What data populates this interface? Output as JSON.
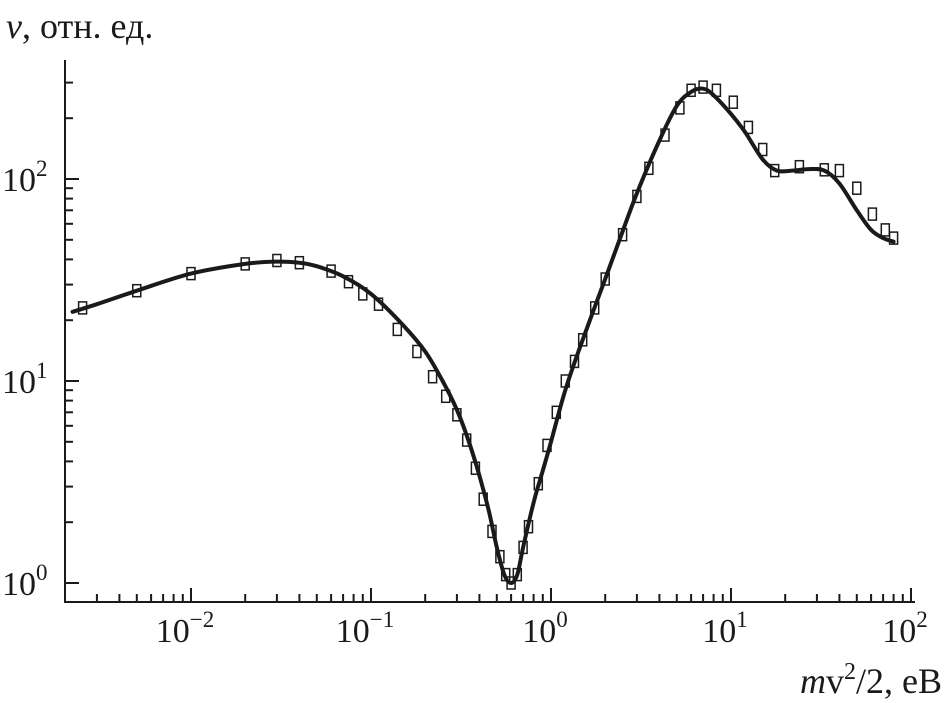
{
  "chart_data": {
    "type": "line",
    "title": "",
    "ylabel": {
      "italic": "v",
      "rest": ", отн. ед."
    },
    "xlabel": {
      "italic": "m",
      "rest": "v",
      "sup": "2",
      "tail": "/2, eB"
    },
    "xscale": "log",
    "yscale": "log",
    "xlim": [
      0.002,
      120
    ],
    "ylim": [
      0.93,
      320
    ],
    "grid": false,
    "x_ticks": [
      {
        "value": 0.01,
        "base": "10",
        "exp": "−2"
      },
      {
        "value": 0.1,
        "base": "10",
        "exp": "−1"
      },
      {
        "value": 1,
        "base": "10",
        "exp": "0"
      },
      {
        "value": 10,
        "base": "10",
        "exp": "1"
      },
      {
        "value": 100,
        "base": "10",
        "exp": "2"
      }
    ],
    "y_ticks": [
      {
        "value": 1,
        "base": "10",
        "exp": "0"
      },
      {
        "value": 10,
        "base": "10",
        "exp": "1"
      },
      {
        "value": 100,
        "base": "10",
        "exp": "2"
      }
    ],
    "series": [
      {
        "style": "line",
        "color": "#1a1a1a",
        "x": [
          0.0022,
          0.003,
          0.005,
          0.01,
          0.02,
          0.03,
          0.04,
          0.05,
          0.07,
          0.1,
          0.15,
          0.2,
          0.25,
          0.3,
          0.35,
          0.4,
          0.45,
          0.5,
          0.55,
          0.6,
          0.65,
          0.7,
          0.8,
          0.9,
          1.0,
          1.2,
          1.5,
          2.0,
          2.5,
          3.0,
          4.0,
          5.0,
          6.0,
          7.0,
          8.0,
          10,
          12,
          15,
          18,
          22,
          27,
          33,
          40,
          50,
          60,
          70,
          80
        ],
        "y": [
          22,
          24,
          28,
          34,
          38,
          39,
          38.5,
          37,
          33,
          27,
          19,
          14,
          10,
          7.2,
          5,
          3.4,
          2.3,
          1.5,
          1.1,
          1.0,
          1.1,
          1.5,
          2.5,
          3.6,
          5.0,
          9,
          16,
          32,
          55,
          85,
          155,
          230,
          270,
          280,
          260,
          210,
          170,
          125,
          110,
          110,
          112,
          110,
          95,
          70,
          56,
          51,
          49
        ]
      },
      {
        "style": "markers",
        "marker": "square",
        "color": "#1a1a1a",
        "x": [
          0.0025,
          0.005,
          0.01,
          0.02,
          0.03,
          0.04,
          0.06,
          0.075,
          0.09,
          0.11,
          0.14,
          0.18,
          0.22,
          0.26,
          0.3,
          0.34,
          0.38,
          0.42,
          0.47,
          0.52,
          0.56,
          0.6,
          0.65,
          0.7,
          0.75,
          0.85,
          0.95,
          1.07,
          1.2,
          1.35,
          1.5,
          1.75,
          2.0,
          2.5,
          3.0,
          3.5,
          4.3,
          5.2,
          6.0,
          7.0,
          8.3,
          10.3,
          12.5,
          15.0,
          17.5,
          24,
          33,
          40,
          50,
          61,
          72,
          80
        ],
        "y": [
          23,
          28,
          34,
          38,
          39.5,
          38.5,
          35,
          31,
          27,
          24,
          18,
          14,
          10.5,
          8.4,
          6.8,
          5.1,
          3.7,
          2.6,
          1.8,
          1.35,
          1.1,
          1.0,
          1.1,
          1.5,
          1.9,
          3.1,
          4.8,
          7,
          10,
          12.5,
          16,
          23,
          32,
          53,
          82,
          113,
          165,
          225,
          275,
          285,
          275,
          240,
          180,
          140,
          110,
          115,
          111,
          110,
          90,
          67,
          56,
          51
        ]
      }
    ]
  }
}
